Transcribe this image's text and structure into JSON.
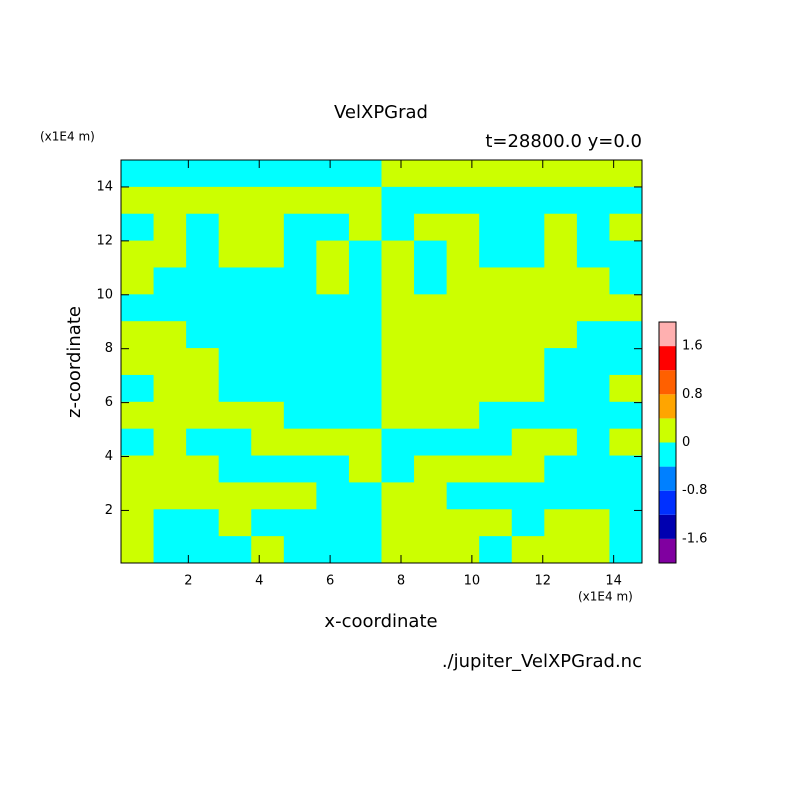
{
  "chart_data": {
    "type": "contour",
    "title": "VelXPGrad",
    "subtitle": "t=28800.0 y=0.0",
    "x_label": "x-coordinate",
    "y_label": "z-coordinate",
    "x_unit": "(x1E4 m)",
    "y_unit": "(x1E4 m)",
    "source": "./jupiter_VelXPGrad.nc",
    "xlim": [
      0.1,
      14.8
    ],
    "ylim": [
      0.05,
      15
    ],
    "xticks": [
      2,
      4,
      6,
      8,
      10,
      12,
      14
    ],
    "yticks": [
      2,
      4,
      6,
      8,
      10,
      12,
      14
    ],
    "levels": [
      -2.0,
      -1.6,
      -1.2,
      -0.8,
      -0.4,
      0,
      0.4,
      0.8,
      1.2,
      1.6,
      2.0
    ],
    "level_colors": [
      "#8000a0",
      "#0000b0",
      "#0030ff",
      "#0080ff",
      "#00ffff",
      "#ccff00",
      "#ffa500",
      "#ff6000",
      "#ff0000",
      "#ffb0b0"
    ],
    "colorbar_ticks": [
      -1.6,
      -0.8,
      0,
      0.8,
      1.6
    ],
    "field": [
      [
        -0.2,
        -0.2,
        -0.2,
        -0.2,
        -0.2,
        -0.2,
        -0.2,
        -0.2,
        0.2,
        0.2,
        0.2,
        0.2,
        0.2,
        0.2,
        0.2,
        0.2
      ],
      [
        0.2,
        0.2,
        0.2,
        0.2,
        0.2,
        0.2,
        0.2,
        0.2,
        -0.2,
        -0.2,
        -0.2,
        -0.2,
        -0.2,
        -0.2,
        -0.2,
        -0.2
      ],
      [
        -0.2,
        0.2,
        -0.2,
        0.2,
        0.2,
        -0.2,
        -0.2,
        0.2,
        -0.2,
        0.2,
        0.2,
        -0.2,
        -0.2,
        0.2,
        -0.2,
        0.2
      ],
      [
        0.2,
        0.2,
        -0.2,
        0.2,
        0.2,
        -0.2,
        0.2,
        -0.2,
        0.2,
        -0.2,
        0.2,
        -0.2,
        -0.2,
        0.2,
        -0.2,
        -0.2
      ],
      [
        0.2,
        -0.2,
        -0.2,
        -0.2,
        -0.2,
        -0.2,
        0.2,
        -0.2,
        0.2,
        -0.2,
        0.2,
        0.2,
        0.2,
        0.2,
        0.2,
        -0.2
      ],
      [
        -0.2,
        -0.2,
        -0.2,
        -0.2,
        -0.2,
        -0.2,
        -0.2,
        -0.2,
        0.2,
        0.2,
        0.2,
        0.2,
        0.2,
        0.2,
        0.2,
        0.2
      ],
      [
        0.2,
        0.2,
        -0.2,
        -0.2,
        -0.2,
        -0.2,
        -0.2,
        -0.2,
        0.2,
        0.2,
        0.2,
        0.2,
        0.2,
        0.2,
        -0.2,
        -0.2
      ],
      [
        0.2,
        0.2,
        0.2,
        -0.2,
        -0.2,
        -0.2,
        -0.2,
        -0.2,
        0.2,
        0.2,
        0.2,
        0.2,
        0.2,
        -0.2,
        -0.2,
        -0.2
      ],
      [
        -0.2,
        0.2,
        0.2,
        -0.2,
        -0.2,
        -0.2,
        -0.2,
        -0.2,
        0.2,
        0.2,
        0.2,
        0.2,
        0.2,
        -0.2,
        -0.2,
        0.2
      ],
      [
        0.2,
        0.2,
        0.2,
        0.2,
        0.2,
        -0.2,
        -0.2,
        -0.2,
        0.2,
        0.2,
        0.2,
        -0.2,
        -0.2,
        -0.2,
        -0.2,
        -0.2
      ],
      [
        -0.2,
        0.2,
        -0.2,
        -0.2,
        0.2,
        0.2,
        0.2,
        0.2,
        -0.2,
        -0.2,
        -0.2,
        -0.2,
        0.2,
        0.2,
        -0.2,
        0.2
      ],
      [
        0.2,
        0.2,
        0.2,
        -0.2,
        -0.2,
        -0.2,
        -0.2,
        0.2,
        -0.2,
        0.2,
        0.2,
        0.2,
        0.2,
        -0.2,
        -0.2,
        -0.2
      ],
      [
        0.2,
        0.2,
        0.2,
        0.2,
        0.2,
        0.2,
        -0.2,
        -0.2,
        0.2,
        0.2,
        -0.2,
        -0.2,
        -0.2,
        -0.2,
        -0.2,
        -0.2
      ],
      [
        0.2,
        -0.2,
        -0.2,
        0.2,
        -0.2,
        -0.2,
        -0.2,
        -0.2,
        0.2,
        0.2,
        0.2,
        0.2,
        -0.2,
        0.2,
        0.2,
        -0.2
      ],
      [
        0.2,
        -0.2,
        -0.2,
        -0.2,
        0.2,
        -0.2,
        -0.2,
        -0.2,
        0.2,
        0.2,
        0.2,
        -0.2,
        0.2,
        0.2,
        0.2,
        -0.2
      ]
    ]
  }
}
